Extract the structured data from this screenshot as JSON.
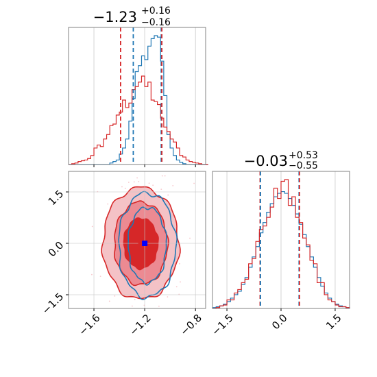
{
  "colors": {
    "blue": "#1f77b4",
    "red": "#d62728",
    "grid": "#c8c8c8",
    "axis": "#808080"
  },
  "chart_data": [
    {
      "panel": "top-left",
      "type": "histogram",
      "parameter_index": 0,
      "title": {
        "value": "−1.23",
        "upper": "+0.16",
        "lower": "−0.16"
      },
      "xlim": [
        -1.8,
        -0.72
      ],
      "grid": true,
      "series": [
        {
          "color": "#1f77b4",
          "x": [
            -1.8,
            -1.775,
            -1.75,
            -1.725,
            -1.7,
            -1.675,
            -1.65,
            -1.625,
            -1.6,
            -1.575,
            -1.55,
            -1.525,
            -1.5,
            -1.475,
            -1.45,
            -1.425,
            -1.4,
            -1.375,
            -1.35,
            -1.325,
            -1.3,
            -1.275,
            -1.25,
            -1.225,
            -1.2,
            -1.175,
            -1.15,
            -1.125,
            -1.1,
            -1.075,
            -1.05,
            -1.025,
            -1.0,
            -0.975,
            -0.95,
            -0.925,
            -0.9,
            -0.875,
            -0.85,
            -0.825,
            -0.8,
            -0.775,
            -0.75,
            -0.725
          ],
          "counts": [
            0,
            0,
            0,
            0,
            0,
            0,
            0,
            0,
            0,
            0,
            0,
            0,
            0,
            2,
            4,
            6,
            14,
            22,
            34,
            58,
            88,
            124,
            132,
            145,
            140,
            158,
            168,
            172,
            170,
            138,
            92,
            40,
            22,
            12,
            6,
            3,
            1,
            0,
            0,
            0,
            0,
            0,
            0,
            0
          ]
        },
        {
          "color": "#d62728",
          "x": [
            -1.8,
            -1.775,
            -1.75,
            -1.725,
            -1.7,
            -1.675,
            -1.65,
            -1.625,
            -1.6,
            -1.575,
            -1.55,
            -1.525,
            -1.5,
            -1.475,
            -1.45,
            -1.425,
            -1.4,
            -1.375,
            -1.35,
            -1.325,
            -1.3,
            -1.275,
            -1.25,
            -1.225,
            -1.2,
            -1.175,
            -1.15,
            -1.125,
            -1.1,
            -1.075,
            -1.05,
            -1.025,
            -1.0,
            -0.975,
            -0.95,
            -0.925,
            -0.9,
            -0.875,
            -0.85,
            -0.825,
            -0.8,
            -0.775,
            -0.75,
            -0.725
          ],
          "counts": [
            0,
            1,
            2,
            4,
            5,
            6,
            8,
            12,
            22,
            26,
            24,
            34,
            40,
            52,
            54,
            66,
            70,
            86,
            76,
            82,
            100,
            104,
            110,
            118,
            104,
            110,
            86,
            84,
            80,
            62,
            50,
            44,
            34,
            30,
            22,
            12,
            10,
            6,
            4,
            3,
            2,
            1,
            0,
            0
          ]
        }
      ],
      "lines": [
        {
          "x": -1.39,
          "color": "#d62728",
          "style": "dashed"
        },
        {
          "x": -1.29,
          "color": "#1f77b4",
          "style": "dashed"
        },
        {
          "x": -1.07,
          "color": "#1f77b4",
          "style": "dashed"
        },
        {
          "x": -1.065,
          "color": "#d62728",
          "style": "dashed"
        }
      ]
    },
    {
      "panel": "bottom-left",
      "type": "contour",
      "xlim": [
        -1.8,
        -0.72
      ],
      "ylim": [
        -1.9,
        2.1
      ],
      "grid": true,
      "x_ticks": [
        "−1.6",
        "−1.2",
        "−0.8"
      ],
      "x_tick_values": [
        -1.6,
        -1.2,
        -0.8
      ],
      "y_ticks": [
        "−1.5",
        "0.0",
        "1.5"
      ],
      "y_tick_values": [
        -1.5,
        0.0,
        1.5
      ],
      "red_contours": {
        "center": [
          -1.23,
          0.0
        ],
        "sigma_x": [
          0.2,
          0.14,
          0.09
        ],
        "sigma_y": [
          1.55,
          1.15,
          0.7
        ]
      },
      "blue_contours": {
        "center": [
          -1.18,
          -0.05
        ],
        "sigma_x": [
          0.15,
          0.1
        ],
        "sigma_y": [
          1.45,
          1.05
        ]
      },
      "center_markers": [
        {
          "x": -1.23,
          "y": 0.0,
          "color": "#d62728"
        },
        {
          "x": -1.2,
          "y": 0.0,
          "color": "#0000ff"
        }
      ]
    },
    {
      "panel": "bottom-right",
      "type": "histogram",
      "parameter_index": 1,
      "title": {
        "value": "−0.03",
        "upper": "+0.53",
        "lower": "−0.55"
      },
      "xlim": [
        -1.9,
        1.9
      ],
      "grid": true,
      "x_ticks": [
        "−1.5",
        "0.0",
        "1.5"
      ],
      "x_tick_values": [
        -1.5,
        0.0,
        1.5
      ],
      "series": [
        {
          "color": "#1f77b4",
          "x": [
            -1.9,
            -1.8,
            -1.7,
            -1.6,
            -1.5,
            -1.4,
            -1.3,
            -1.2,
            -1.1,
            -1.0,
            -0.9,
            -0.8,
            -0.7,
            -0.6,
            -0.5,
            -0.4,
            -0.3,
            -0.2,
            -0.1,
            0.0,
            0.1,
            0.2,
            0.3,
            0.4,
            0.5,
            0.6,
            0.7,
            0.8,
            0.9,
            1.0,
            1.1,
            1.2,
            1.3,
            1.4,
            1.5,
            1.6,
            1.7,
            1.8
          ],
          "counts": [
            1,
            2,
            3,
            5,
            8,
            12,
            16,
            20,
            28,
            36,
            48,
            60,
            72,
            88,
            100,
            112,
            122,
            130,
            134,
            136,
            134,
            128,
            120,
            110,
            98,
            86,
            72,
            60,
            48,
            36,
            26,
            18,
            12,
            8,
            5,
            3,
            2,
            1
          ]
        },
        {
          "color": "#d62728",
          "x": [
            -1.9,
            -1.8,
            -1.7,
            -1.6,
            -1.5,
            -1.4,
            -1.3,
            -1.2,
            -1.1,
            -1.0,
            -0.9,
            -0.8,
            -0.7,
            -0.6,
            -0.5,
            -0.4,
            -0.3,
            -0.2,
            -0.1,
            0.0,
            0.1,
            0.2,
            0.3,
            0.4,
            0.5,
            0.6,
            0.7,
            0.8,
            0.9,
            1.0,
            1.1,
            1.2,
            1.3,
            1.4,
            1.5,
            1.6,
            1.7,
            1.8
          ],
          "counts": [
            0,
            1,
            3,
            4,
            10,
            10,
            18,
            22,
            30,
            34,
            52,
            58,
            78,
            92,
            96,
            106,
            118,
            140,
            128,
            148,
            150,
            120,
            130,
            106,
            100,
            82,
            74,
            56,
            52,
            30,
            30,
            16,
            10,
            8,
            4,
            2,
            2,
            1
          ]
        }
      ],
      "lines": [
        {
          "x": -0.58,
          "color": "#d62728",
          "style": "dashed"
        },
        {
          "x": -0.57,
          "color": "#1f77b4",
          "style": "dashed"
        },
        {
          "x": 0.5,
          "color": "#1f77b4",
          "style": "dashed"
        },
        {
          "x": 0.51,
          "color": "#d62728",
          "style": "dashed"
        }
      ]
    }
  ]
}
